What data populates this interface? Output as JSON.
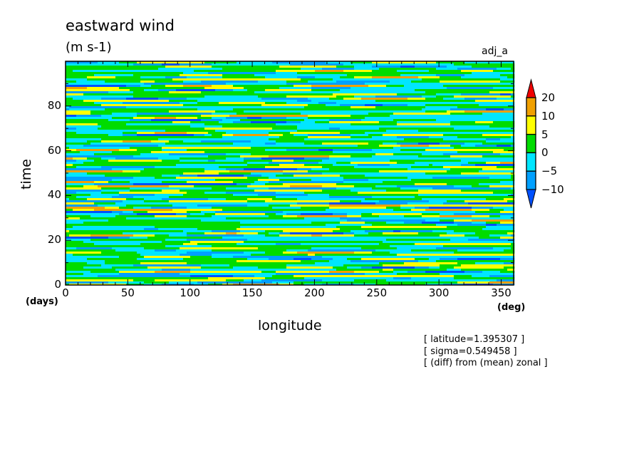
{
  "chart_data": {
    "type": "heatmap",
    "title": "eastward wind",
    "units": "(m s-1)",
    "label_right": "adj_a",
    "xlabel": "longitude",
    "xunit": "(deg)",
    "ylabel": "time",
    "yunit": "(days)",
    "xlim": [
      0,
      360
    ],
    "ylim": [
      0,
      100
    ],
    "xticks": [
      0,
      50,
      100,
      150,
      200,
      250,
      300,
      350
    ],
    "yticks": [
      0,
      20,
      40,
      60,
      80
    ],
    "levels": [
      -10,
      -5,
      0,
      5,
      10,
      20
    ],
    "level_labels": [
      "20",
      "10",
      "5",
      "0",
      "−5",
      "−10"
    ],
    "colors": [
      "#0050ff",
      "#00a0ff",
      "#00e6ff",
      "#00dc00",
      "#ffff00",
      "#f0a000",
      "#f00000"
    ],
    "notes": [
      "[ latitude=1.395307 ]",
      "[ sigma=0.549458 ]",
      "[ (diff) from (mean) zonal ]"
    ]
  }
}
